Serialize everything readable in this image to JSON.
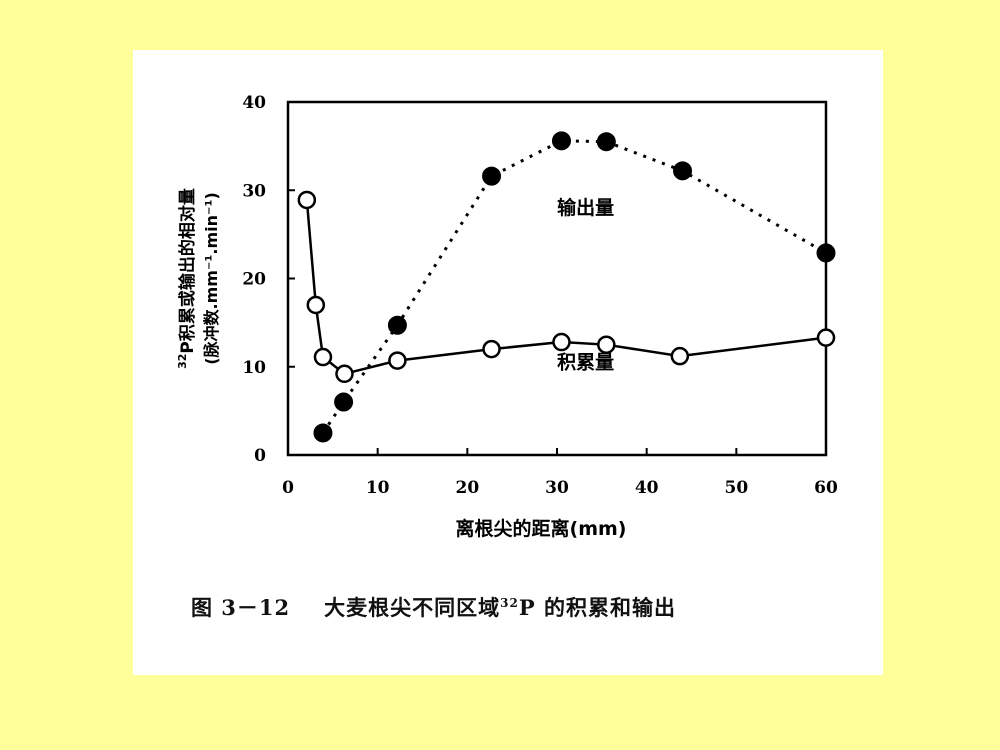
{
  "chart_data": {
    "type": "line",
    "xlabel": "离根尖的距离(mm)",
    "ylabel_main": "P积累或输出的相对量",
    "ylabel_superscript": "32",
    "ylabel_unit": "(脉冲数.mm⁻¹.min⁻¹)",
    "xlim": [
      0,
      60
    ],
    "ylim": [
      0,
      40
    ],
    "x_ticks": [
      0,
      10,
      20,
      30,
      40,
      50,
      60
    ],
    "y_ticks": [
      0,
      10,
      20,
      30,
      40
    ],
    "grid": false,
    "series": [
      {
        "name": "输出量",
        "marker": "filled-circle",
        "line_style": "dotted",
        "color": "#000000",
        "x": [
          3.9,
          6.2,
          12.2,
          22.7,
          30.5,
          35.5,
          44.0,
          60.0
        ],
        "y": [
          2.5,
          6.0,
          14.7,
          31.6,
          35.6,
          35.5,
          32.2,
          22.9
        ]
      },
      {
        "name": "积累量",
        "marker": "open-circle",
        "line_style": "solid",
        "color": "#000000",
        "x": [
          2.1,
          3.1,
          3.9,
          6.3,
          12.2,
          22.7,
          30.5,
          35.5,
          43.7,
          60.0
        ],
        "y": [
          28.9,
          17.0,
          11.1,
          9.2,
          10.7,
          12.0,
          12.8,
          12.5,
          11.2,
          13.3
        ]
      }
    ],
    "caption_prefix": "图 3－12",
    "caption_before_sup": "大麦根尖不同区域",
    "caption_sup": "32",
    "caption_after_sup": "P 的积累和输出"
  },
  "colors": {
    "page_background": "#ffff99",
    "card_background": "#ffffff",
    "ink": "#000000"
  }
}
